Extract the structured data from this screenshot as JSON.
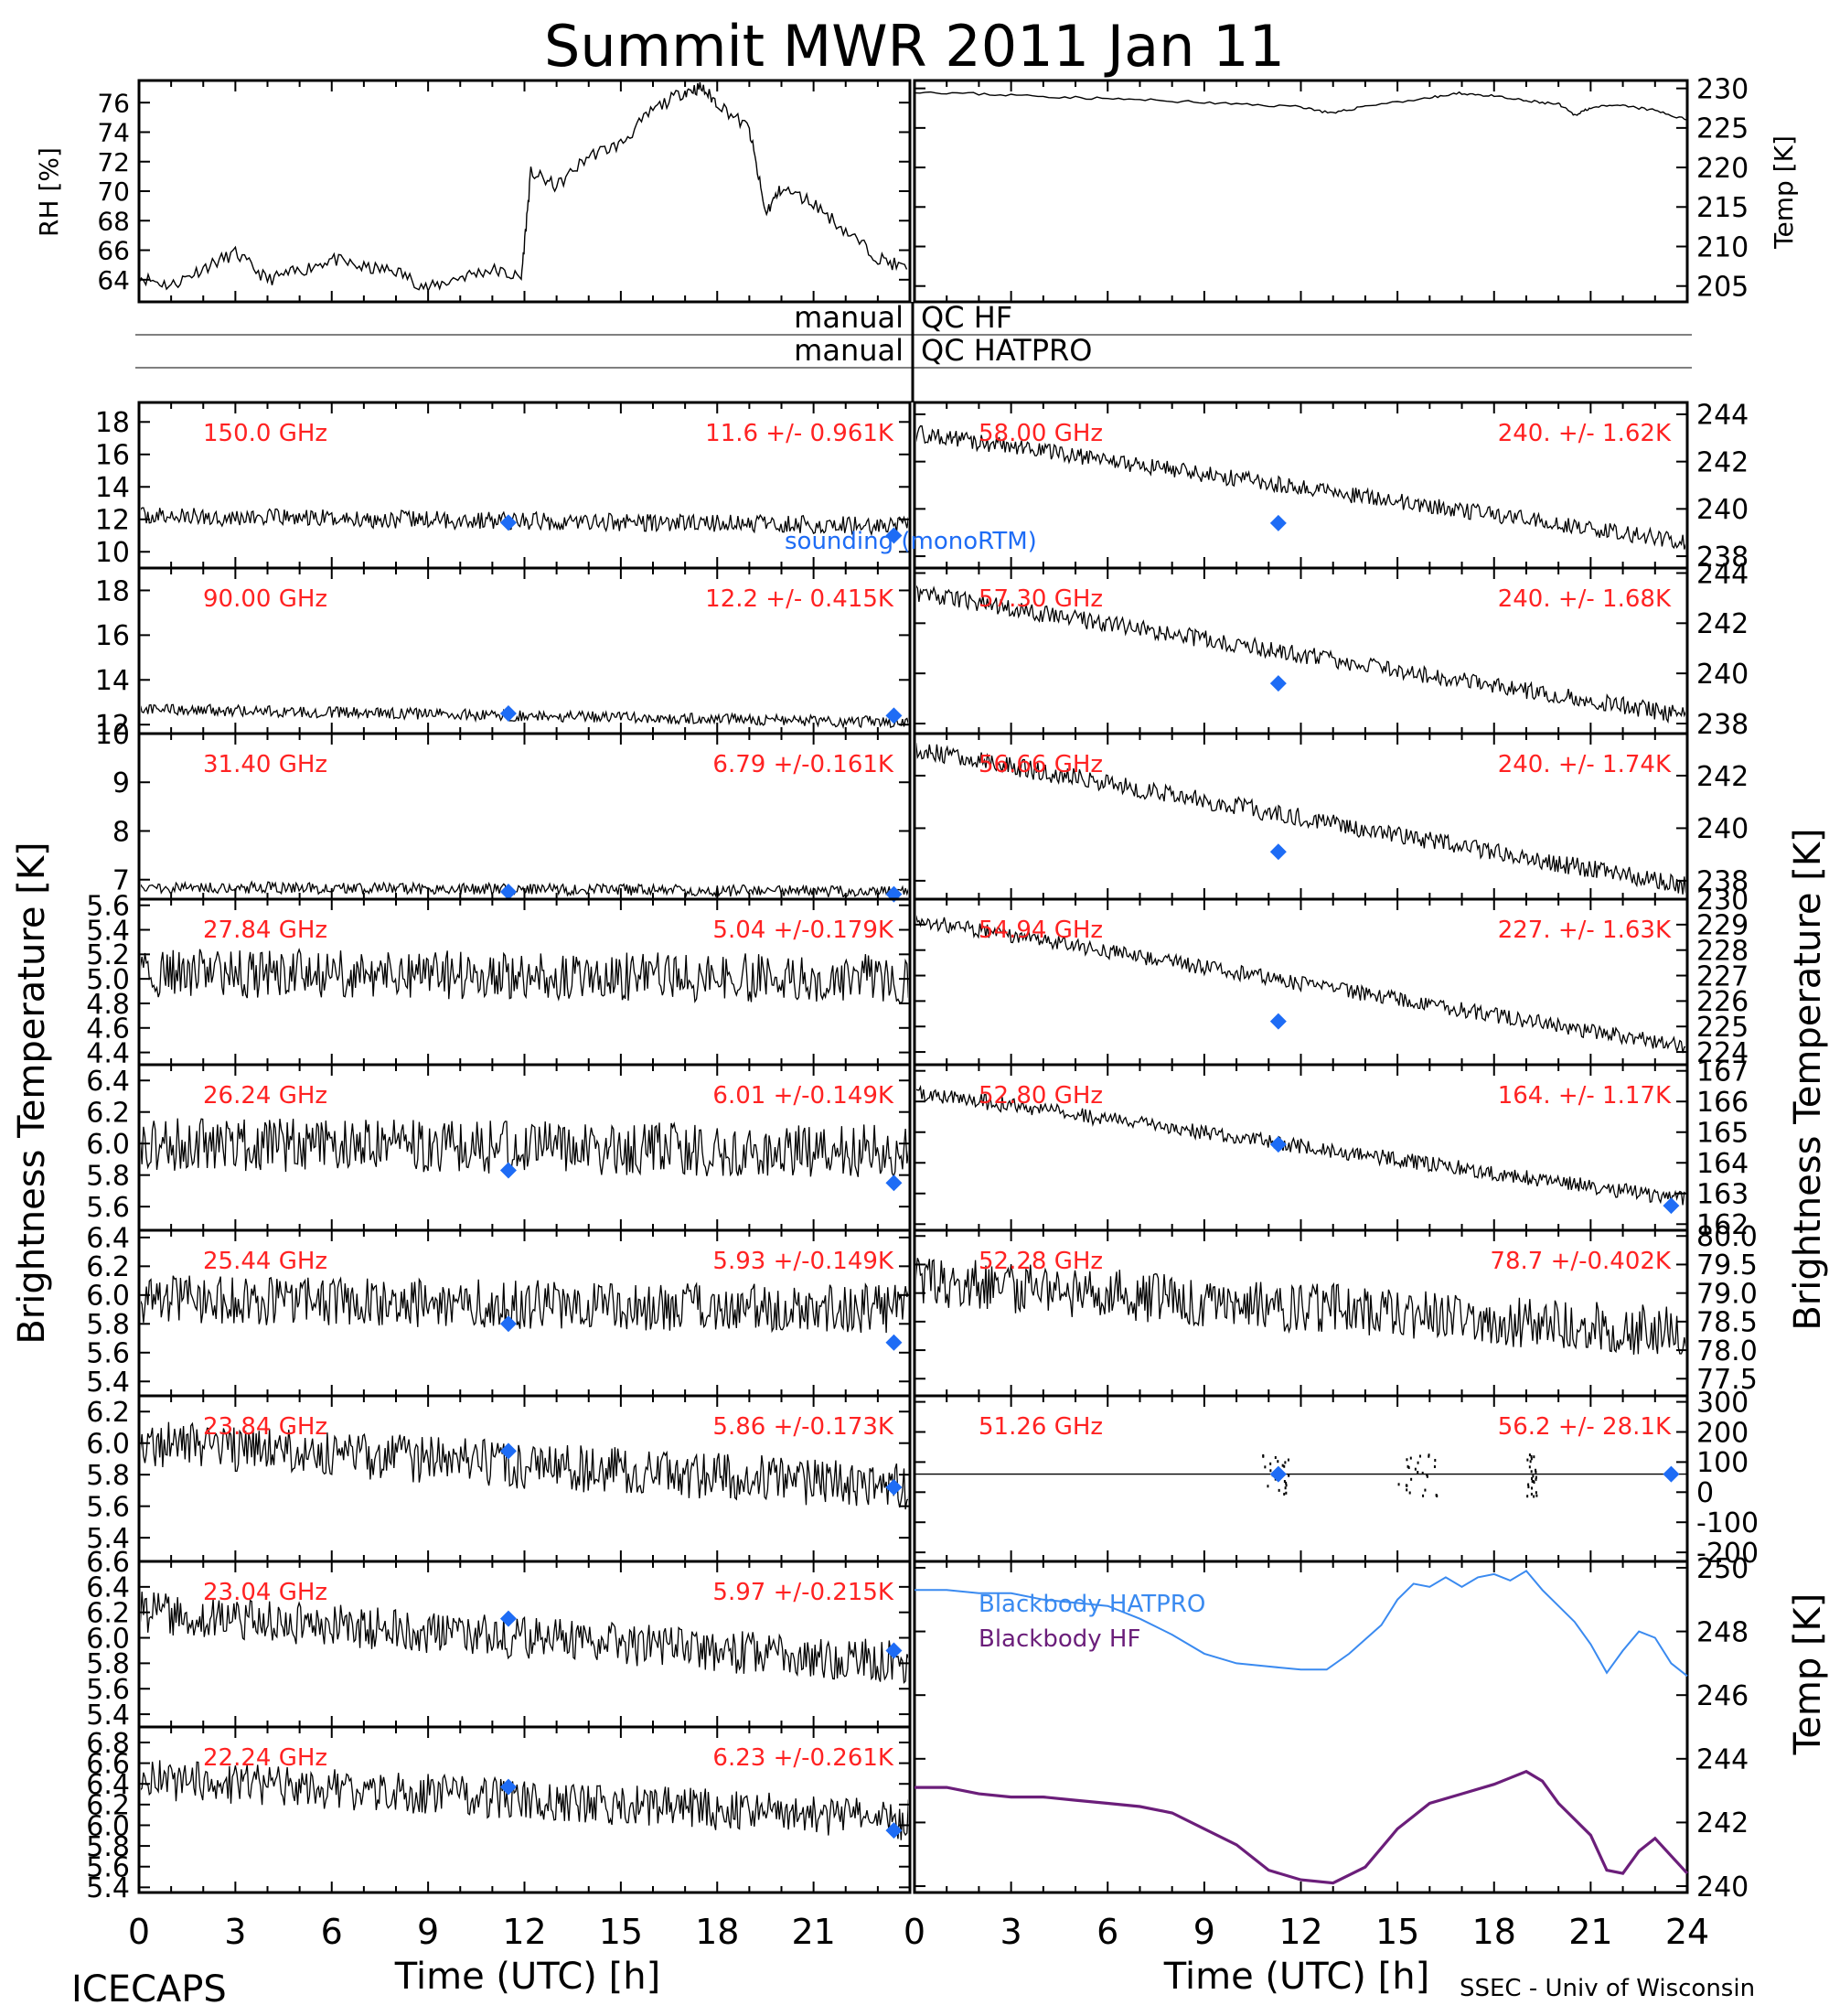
{
  "title": "Summit MWR 2011 Jan 11",
  "footer": {
    "left": "ICECAPS",
    "xlabel": "Time (UTC) [h]",
    "credit": "SSEC - Univ of Wisconsin"
  },
  "side_labels": {
    "left_bt": "Brightness Temperature [K]",
    "right_bt": "Brightness Temperature [K]",
    "rh": "RH [%]",
    "temp_top": "Temp [K]",
    "temp_bb": "Temp [K]"
  },
  "qc": {
    "label": "manual",
    "hf": "QC HF",
    "hatpro": "QC HATPRO"
  },
  "legend": {
    "sounding": "sounding (monoRTM)",
    "bb_hatpro": "Blackbody HATPRO",
    "bb_hf": "Blackbody HF"
  },
  "colors": {
    "stats": "#ff2222",
    "sounding": "#1e6cf5",
    "bb_hatpro": "#3a8af0",
    "bb_hf": "#6b1e7a",
    "trace": "#000000"
  },
  "chart_data": {
    "type": "scatter",
    "x_ticks_left": [
      "0",
      "3",
      "6",
      "9",
      "12",
      "15",
      "18",
      "21"
    ],
    "x_ticks_right": [
      "0",
      "3",
      "6",
      "9",
      "12",
      "15",
      "18",
      "21",
      "24"
    ],
    "xlim": [
      0,
      24
    ],
    "top_left": {
      "ylabel": "RH [%]",
      "ylim": [
        62.5,
        77.5
      ],
      "yticks": [
        64,
        66,
        68,
        70,
        72,
        74,
        76
      ],
      "series": [
        {
          "x": [
            0,
            1,
            2,
            3,
            4,
            5,
            6,
            7,
            8,
            9,
            10,
            11,
            11.9,
            12.2,
            13,
            14,
            15,
            16,
            17,
            17.5,
            18,
            19,
            19.5,
            20,
            21,
            22,
            23,
            23.9
          ],
          "y": [
            64.2,
            63.6,
            64.8,
            65.8,
            64.0,
            64.6,
            65.4,
            64.8,
            64.6,
            63.4,
            64.2,
            64.7,
            64.1,
            71.3,
            70.3,
            72.4,
            73.2,
            75.5,
            76.8,
            77.0,
            76.0,
            74.2,
            68.5,
            70.2,
            69.2,
            67.3,
            65.5,
            64.7
          ]
        }
      ]
    },
    "top_right": {
      "ylabel": "Temp [K]",
      "ylim": [
        203,
        231
      ],
      "yticks": [
        205,
        210,
        215,
        220,
        225,
        230
      ],
      "series": [
        {
          "x": [
            0,
            2,
            4,
            6,
            8,
            10,
            12,
            13,
            14,
            16,
            17,
            18,
            19,
            20,
            20.5,
            21,
            22,
            23,
            24
          ],
          "y": [
            229.6,
            229.3,
            229.0,
            228.7,
            228.4,
            228.0,
            227.7,
            226.8,
            227.8,
            228.8,
            229.4,
            229.0,
            228.4,
            228.0,
            226.6,
            227.6,
            227.8,
            227.2,
            226.0
          ]
        }
      ]
    },
    "channels_left": [
      {
        "freq": "150.0 GHz",
        "stat": "11.6 +/- 0.961K",
        "ylim": [
          9,
          19.2
        ],
        "yticks": [
          "10",
          "12",
          "14",
          "16",
          "18"
        ],
        "trend": [
          12.2,
          11.6
        ],
        "noise": 0.55,
        "points": [
          [
            11.5,
            11.8
          ],
          [
            23.5,
            11.0
          ]
        ]
      },
      {
        "freq": "90.00 GHz",
        "stat": "12.2 +/- 0.415K",
        "ylim": [
          11.6,
          19
        ],
        "yticks": [
          "12",
          "14",
          "16",
          "18"
        ],
        "trend": [
          12.7,
          12.1
        ],
        "noise": 0.25,
        "points": [
          [
            11.5,
            12.5
          ],
          [
            23.5,
            12.4
          ]
        ]
      },
      {
        "freq": "31.40 GHz",
        "stat": "6.79 +/-0.161K",
        "ylim": [
          6.6,
          10
        ],
        "yticks": [
          "7",
          "8",
          "9",
          "10"
        ],
        "trend": [
          6.85,
          6.75
        ],
        "noise": 0.12,
        "points": [
          [
            11.5,
            6.75
          ],
          [
            23.5,
            6.7
          ]
        ]
      },
      {
        "freq": "27.84 GHz",
        "stat": "5.04 +/-0.179K",
        "ylim": [
          4.3,
          5.65
        ],
        "yticks": [
          "4.4",
          "4.6",
          "4.8",
          "5.0",
          "5.2",
          "5.4",
          "5.6"
        ],
        "trend": [
          5.05,
          5.0
        ],
        "noise": 0.2,
        "points": []
      },
      {
        "freq": "26.24 GHz",
        "stat": "6.01 +/-0.149K",
        "ylim": [
          5.45,
          6.5
        ],
        "yticks": [
          "5.6",
          "5.8",
          "6.0",
          "6.2",
          "6.4"
        ],
        "trend": [
          6.0,
          5.95
        ],
        "noise": 0.17,
        "points": [
          [
            11.5,
            5.83
          ],
          [
            23.5,
            5.75
          ]
        ]
      },
      {
        "freq": "25.44 GHz",
        "stat": "5.93 +/-0.149K",
        "ylim": [
          5.3,
          6.45
        ],
        "yticks": [
          "5.4",
          "5.6",
          "5.8",
          "6.0",
          "6.2",
          "6.4"
        ],
        "trend": [
          5.97,
          5.9
        ],
        "noise": 0.17,
        "points": [
          [
            11.5,
            5.8
          ],
          [
            23.5,
            5.67
          ]
        ]
      },
      {
        "freq": "23.84 GHz",
        "stat": "5.86 +/-0.173K",
        "ylim": [
          5.25,
          6.3
        ],
        "yticks": [
          "5.4",
          "5.6",
          "5.8",
          "6.0",
          "6.2"
        ],
        "trend": [
          6.0,
          5.72
        ],
        "noise": 0.15,
        "points": [
          [
            11.5,
            5.95
          ],
          [
            23.5,
            5.72
          ]
        ]
      },
      {
        "freq": "23.04 GHz",
        "stat": "5.97 +/-0.215K",
        "ylim": [
          5.3,
          6.6
        ],
        "yticks": [
          "5.4",
          "5.6",
          "5.8",
          "6.0",
          "6.2",
          "6.4",
          "6.6"
        ],
        "trend": [
          6.2,
          5.8
        ],
        "noise": 0.17,
        "points": [
          [
            11.5,
            6.15
          ],
          [
            23.5,
            5.9
          ]
        ]
      },
      {
        "freq": "22.24 GHz",
        "stat": "6.23 +/-0.261K",
        "ylim": [
          5.35,
          6.95
        ],
        "yticks": [
          "5.4",
          "5.6",
          "5.8",
          "6.0",
          "6.2",
          "6.4",
          "6.6",
          "6.8"
        ],
        "trend": [
          6.45,
          6.05
        ],
        "noise": 0.2,
        "points": [
          [
            11.5,
            6.37
          ],
          [
            23.5,
            5.95
          ]
        ]
      }
    ],
    "channels_right": [
      {
        "freq": "58.00 GHz",
        "stat": "240. +/- 1.62K",
        "ylim": [
          237.5,
          244.5
        ],
        "yticks": [
          "238",
          "240",
          "242",
          "244"
        ],
        "trend": [
          243.2,
          238.6
        ],
        "noise": 0.35,
        "points": [
          [
            11.3,
            239.4
          ]
        ]
      },
      {
        "freq": "57.30 GHz",
        "stat": "240. +/- 1.68K",
        "ylim": [
          237.6,
          244.2
        ],
        "yticks": [
          "238",
          "240",
          "242",
          "244"
        ],
        "trend": [
          243.2,
          238.3
        ],
        "noise": 0.35,
        "points": [
          [
            11.3,
            239.6
          ]
        ]
      },
      {
        "freq": "56.66 GHz",
        "stat": "240. +/- 1.74K",
        "ylim": [
          237.3,
          243.6
        ],
        "yticks": [
          "238",
          "240",
          "242"
        ],
        "trend": [
          243.0,
          237.8
        ],
        "noise": 0.35,
        "points": [
          [
            11.3,
            239.1
          ]
        ]
      },
      {
        "freq": "54.94 GHz",
        "stat": "227. +/- 1.63K",
        "ylim": [
          223.5,
          230
        ],
        "yticks": [
          "224",
          "225",
          "226",
          "227",
          "228",
          "229",
          "230"
        ],
        "trend": [
          229.2,
          224.2
        ],
        "noise": 0.3,
        "points": [
          [
            11.3,
            225.2
          ]
        ]
      },
      {
        "freq": "52.80 GHz",
        "stat": "164. +/- 1.17K",
        "ylim": [
          161.8,
          167.2
        ],
        "yticks": [
          "162",
          "163",
          "164",
          "165",
          "166",
          "167"
        ],
        "trend": [
          166.3,
          162.8
        ],
        "noise": 0.25,
        "points": [
          [
            11.3,
            164.6
          ],
          [
            23.5,
            162.6
          ]
        ]
      },
      {
        "freq": "52.28 GHz",
        "stat": "78.7 +/-0.402K",
        "ylim": [
          77.2,
          80.1
        ],
        "yticks": [
          "77.5",
          "78.0",
          "78.5",
          "79.0",
          "79.5",
          "80.0"
        ],
        "trend": [
          79.2,
          78.3
        ],
        "noise": 0.45,
        "points": []
      },
      {
        "freq": "51.26 GHz",
        "stat": "56.2 +/- 28.1K",
        "ylim": [
          -230,
          320
        ],
        "yticks": [
          "-200",
          "-100",
          "0",
          "100",
          "200",
          "300"
        ],
        "trend": [
          60,
          60
        ],
        "noise": 0,
        "points": [
          [
            11.3,
            60
          ],
          [
            23.5,
            60
          ]
        ]
      }
    ],
    "blackbody": {
      "ylabel": "Temp [K]",
      "ylim": [
        239.8,
        250.2
      ],
      "yticks": [
        240,
        242,
        244,
        246,
        248,
        250
      ],
      "series": [
        {
          "name": "Blackbody HATPRO",
          "x": [
            0,
            1,
            2,
            3,
            4,
            5,
            6,
            7,
            8,
            9,
            10,
            11,
            12,
            12.8,
            13.5,
            14.5,
            15,
            15.5,
            16,
            16.5,
            17,
            17.5,
            18,
            18.5,
            19,
            19.5,
            20,
            20.5,
            21,
            21.5,
            22,
            22.5,
            23,
            23.5,
            24
          ],
          "y": [
            249.3,
            249.3,
            249.2,
            249.2,
            249.0,
            248.9,
            248.8,
            248.4,
            247.9,
            247.3,
            247.0,
            246.9,
            246.8,
            246.8,
            247.3,
            248.2,
            249.0,
            249.5,
            249.4,
            249.7,
            249.4,
            249.7,
            249.8,
            249.6,
            249.9,
            249.3,
            248.8,
            248.3,
            247.6,
            246.7,
            247.4,
            248.0,
            247.8,
            247.0,
            246.6
          ]
        },
        {
          "name": "Blackbody HF",
          "x": [
            0,
            1,
            2,
            3,
            4,
            5,
            6,
            7,
            8,
            9,
            10,
            11,
            12,
            13,
            14,
            15,
            15.5,
            16,
            17,
            18,
            18.5,
            19,
            19.5,
            20,
            21,
            21.5,
            22,
            22.5,
            23,
            24
          ],
          "y": [
            243.1,
            243.1,
            242.9,
            242.8,
            242.8,
            242.7,
            242.6,
            242.5,
            242.3,
            241.8,
            241.3,
            240.5,
            240.2,
            240.1,
            240.6,
            241.8,
            242.2,
            242.6,
            242.9,
            243.2,
            243.4,
            243.6,
            243.3,
            242.6,
            241.6,
            240.5,
            240.4,
            241.1,
            241.5,
            240.4
          ]
        }
      ]
    }
  }
}
